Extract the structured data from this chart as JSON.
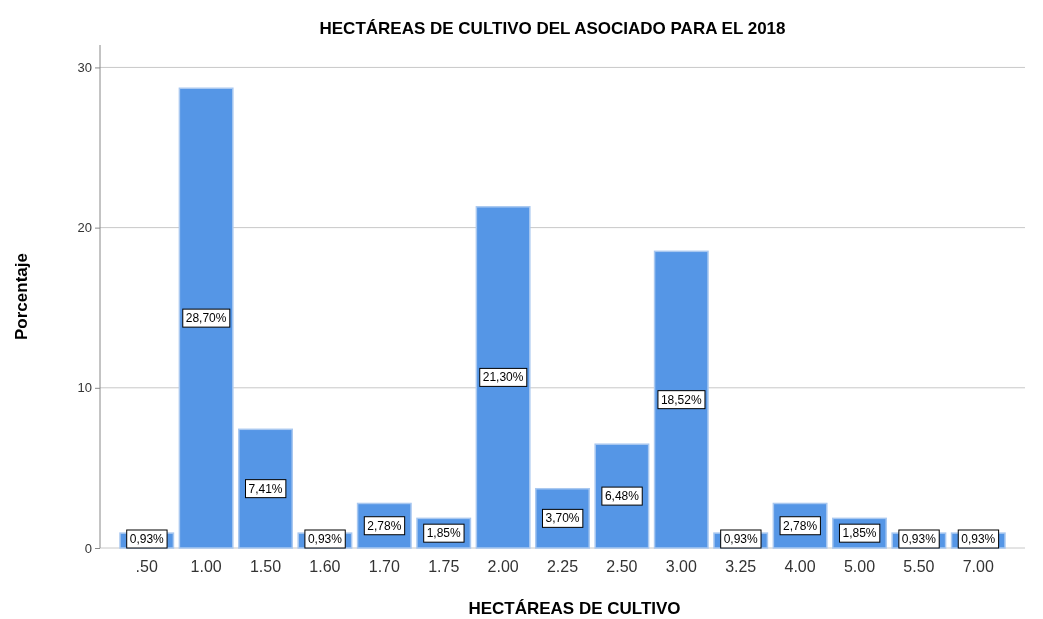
{
  "chart_data": {
    "type": "bar",
    "title": "HECTÁREAS DE CULTIVO DEL ASOCIADO PARA EL 2018",
    "xlabel": "HECTÁREAS DE CULTIVO",
    "ylabel": "Porcentaje",
    "categories": [
      ".50",
      "1.00",
      "1.50",
      "1.60",
      "1.70",
      "1.75",
      "2.00",
      "2.25",
      "2.50",
      "3.00",
      "3.25",
      "4.00",
      "5.00",
      "5.50",
      "7.00"
    ],
    "values": [
      0.93,
      28.7,
      7.41,
      0.93,
      2.78,
      1.85,
      21.3,
      3.7,
      6.48,
      18.52,
      0.93,
      2.78,
      1.85,
      0.93,
      0.93
    ],
    "value_labels": [
      "0,93%",
      "28,70%",
      "7,41%",
      "0,93%",
      "2,78%",
      "1,85%",
      "21,30%",
      "3,70%",
      "6,48%",
      "18,52%",
      "0,93%",
      "2,78%",
      "1,85%",
      "0,93%",
      "0,93%"
    ],
    "color": "#5596e6",
    "ylim": [
      0,
      31.4
    ],
    "yticks": [
      0,
      10,
      20,
      30
    ],
    "grid": "y"
  }
}
